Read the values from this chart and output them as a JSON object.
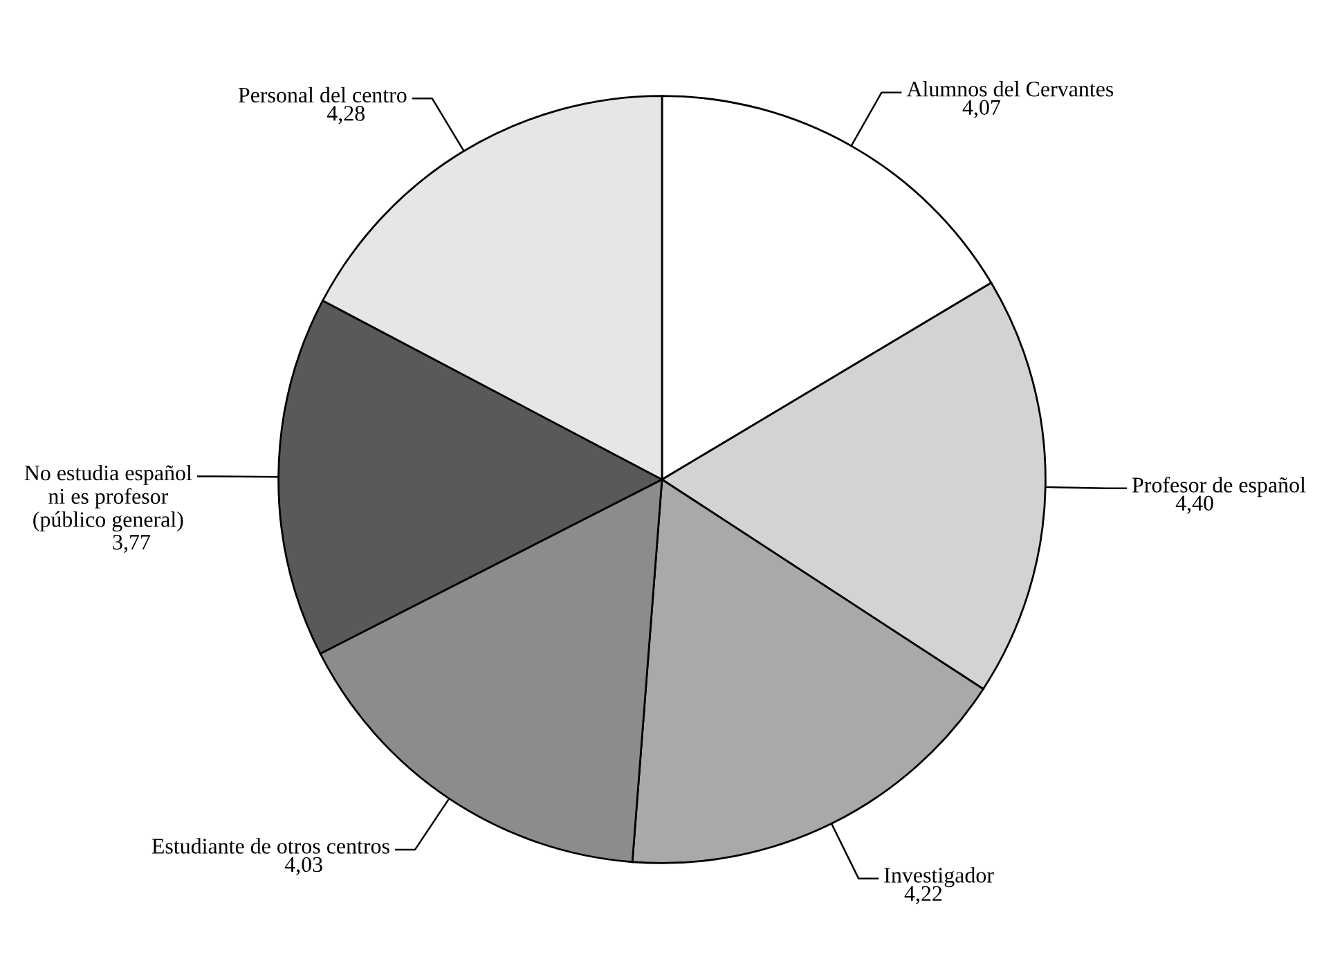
{
  "chart_data": {
    "type": "pie",
    "categories": [
      "Alumnos del Cervantes",
      "Profesor de español",
      "Investigador",
      "Estudiante de otros centros",
      "No estudia español\nni es profesor\n(público general)",
      "Personal del centro"
    ],
    "values": [
      4.07,
      4.4,
      4.22,
      4.03,
      3.77,
      4.28
    ],
    "value_labels": [
      "4,07",
      "4,40",
      "4,22",
      "4,03",
      "3,77",
      "4,28"
    ],
    "colors": [
      "#ffffff",
      "#d3d3d3",
      "#a9a9a9",
      "#8c8c8c",
      "#595959",
      "#e6e6e6"
    ],
    "legend": false
  }
}
